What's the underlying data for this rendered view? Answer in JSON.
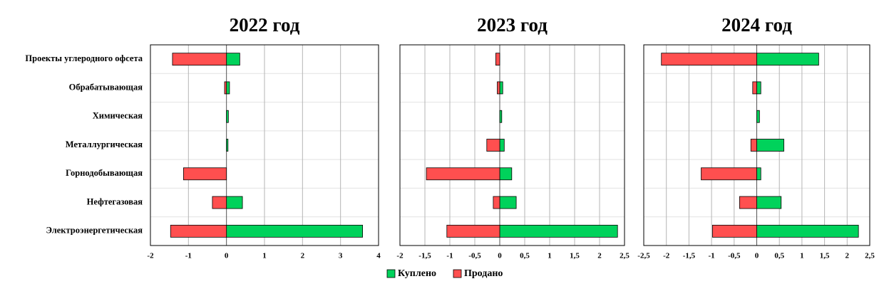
{
  "chart_data": [
    {
      "type": "hbar",
      "title": "2022  год",
      "categories": [
        "Проекты углеродного офсета",
        "Обрабатывающая",
        "Химическая",
        "Металлургическая",
        "Горнодобывающая",
        "Нефтегазовая",
        "Электроэнергетическая"
      ],
      "series": [
        {
          "name": "Куплено",
          "color": "#00d25b",
          "values": [
            0.35,
            0.08,
            0.05,
            0.04,
            0,
            0.42,
            3.58
          ]
        },
        {
          "name": "Продано",
          "color": "#ff4f4f",
          "values": [
            -1.42,
            -0.05,
            0,
            0,
            -1.13,
            -0.37,
            -1.47
          ]
        }
      ],
      "xlim": [
        -2,
        4
      ],
      "xticks": [
        -2,
        -1,
        0,
        1,
        2,
        3,
        4
      ],
      "grid": true
    },
    {
      "type": "hbar",
      "title": "2023  год",
      "series": [
        {
          "name": "Куплено",
          "color": "#00d25b",
          "values": [
            0,
            0.06,
            0.04,
            0.09,
            0.24,
            0.33,
            2.36
          ]
        },
        {
          "name": "Продано",
          "color": "#ff4f4f",
          "values": [
            -0.08,
            -0.05,
            0,
            -0.26,
            -1.47,
            -0.13,
            -1.06
          ]
        }
      ],
      "xlim": [
        -2,
        2.5
      ],
      "xticks": [
        -2,
        {
          "value": -1.5,
          "label": "-1,5"
        },
        -1,
        {
          "value": -0.5,
          "label": "-0,5"
        },
        0,
        {
          "value": 0.5,
          "label": "0,5"
        },
        1,
        {
          "value": 1.5,
          "label": "1,5"
        },
        2,
        {
          "value": 2.5,
          "label": "2,5"
        }
      ],
      "grid": true
    },
    {
      "type": "hbar",
      "title": "2024  год",
      "series": [
        {
          "name": "Куплено",
          "color": "#00d25b",
          "values": [
            1.37,
            0.09,
            0.06,
            0.6,
            0.09,
            0.54,
            2.25
          ]
        },
        {
          "name": "Продано",
          "color": "#ff4f4f",
          "values": [
            -2.11,
            -0.09,
            0,
            -0.13,
            -1.23,
            -0.38,
            -0.98
          ]
        }
      ],
      "xlim": [
        -2.5,
        2.5
      ],
      "xticks": [
        {
          "value": -2.5,
          "label": "-2,5"
        },
        -2,
        {
          "value": -1.5,
          "label": "-1,5"
        },
        -1,
        {
          "value": -0.5,
          "label": "-0,5"
        },
        0,
        {
          "value": 0.5,
          "label": "0,5"
        },
        1,
        {
          "value": 1.5,
          "label": "1,5"
        },
        2,
        {
          "value": 2.5,
          "label": "2,5"
        }
      ],
      "grid": true
    }
  ]
}
